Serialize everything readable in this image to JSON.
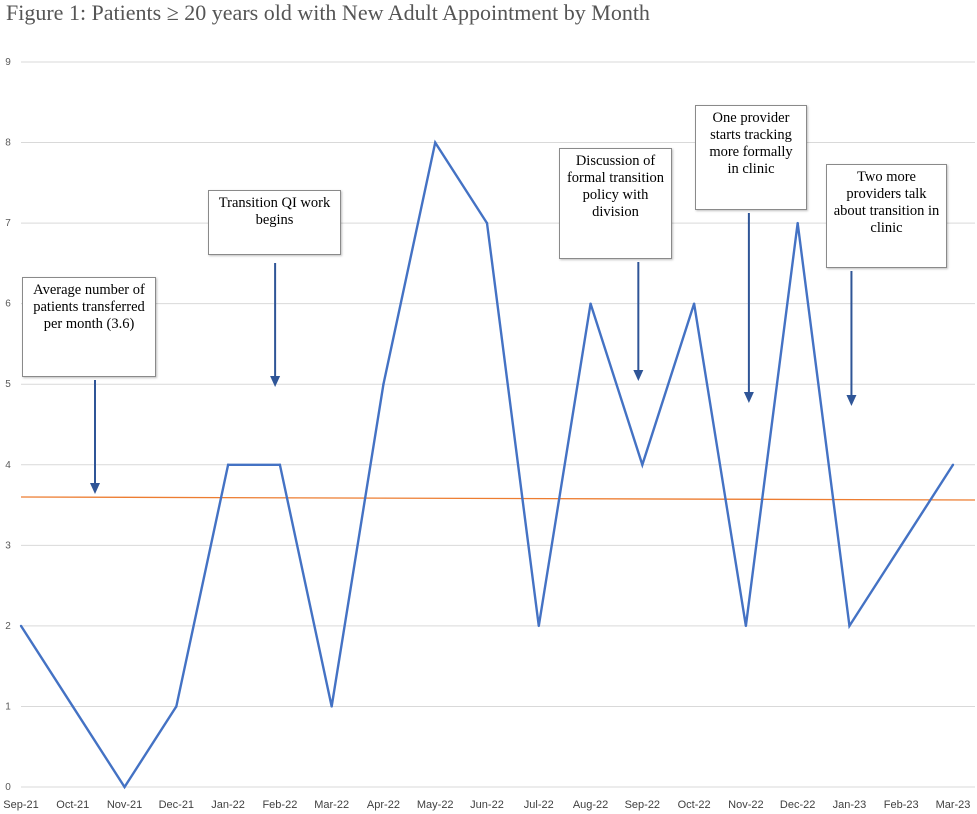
{
  "chart_data": {
    "type": "line",
    "title": "Figure 1: Patients ≥ 20 years old with New Adult Appointment by Month",
    "xlabel": "",
    "ylabel": "",
    "ylim": [
      0,
      9
    ],
    "yticks": [
      "0",
      "1",
      "2",
      "3",
      "4",
      "5",
      "6",
      "7",
      "8",
      "9"
    ],
    "grid": true,
    "categories": [
      "Sep-21",
      "Oct-21",
      "Nov-21",
      "Dec-21",
      "Jan-22",
      "Feb-22",
      "Mar-22",
      "Apr-22",
      "May-22",
      "Jun-22",
      "Jul-22",
      "Aug-22",
      "Sep-22",
      "Oct-22",
      "Nov-22",
      "Dec-22",
      "Jan-23",
      "Feb-23",
      "Mar-23"
    ],
    "series": [
      {
        "values": [
          2,
          1,
          0,
          1,
          4,
          4,
          1,
          5,
          8,
          7,
          2,
          6,
          4,
          6,
          2,
          7,
          2,
          3,
          4
        ],
        "color": "#4472C4"
      }
    ],
    "average_line": {
      "value": 3.6,
      "color": "#ED7D31"
    },
    "annotations": [
      {
        "text": "Average number of patients transferred per month (3.6)",
        "category": "Sep-21"
      },
      {
        "text": "Transition QI work begins",
        "category": "Jan-22"
      },
      {
        "text": "Discussion of formal transition policy with division",
        "category": "Sep-22"
      },
      {
        "text": "One provider starts tracking more formally in clinic",
        "category": "Nov-22"
      },
      {
        "text": "Two more providers talk about transition in clinic",
        "category": "Jan-23"
      }
    ]
  }
}
